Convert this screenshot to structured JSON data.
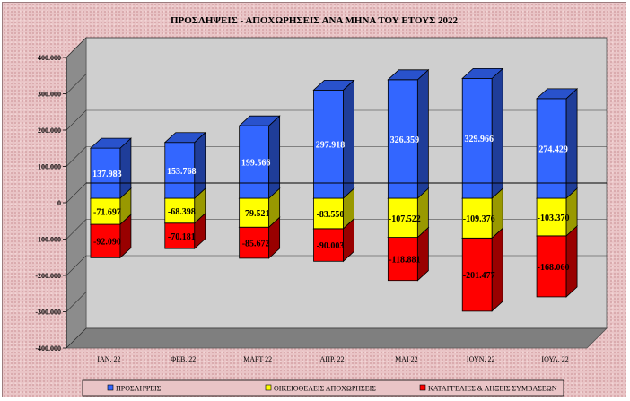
{
  "chart_data": {
    "type": "bar",
    "stacked": true,
    "three_d": true,
    "title": "ΠΡΟΣΛΗΨΕΙΣ - ΑΠΟΧΩΡΗΣΕΙΣ  ΑΝΑ ΜΗΝΑ ΤΟΥ ΕΤΟΥΣ 2022",
    "categories": [
      "ΙΑΝ. 22",
      "ΦΕΒ. 22",
      "ΜΑΡΤ 22",
      "ΑΠΡ. 22",
      "ΜΑΙ 22",
      "ΙΟΥΝ. 22",
      "ΙΟΥΛ. 22"
    ],
    "series": [
      {
        "name": "ΠΡΟΣΛΗΨΕΙΣ",
        "color": "#3366ff",
        "values": [
          137983,
          153768,
          199566,
          297918,
          326359,
          329966,
          274429
        ],
        "labels": [
          "137.983",
          "153.768",
          "199.566",
          "297.918",
          "326.359",
          "329.966",
          "274.429"
        ]
      },
      {
        "name": "ΟΙΚΕΙΟΘΕΛΕΙΣ ΑΠΟΧΩΡΗΣΕΙΣ",
        "color": "#ffff00",
        "values": [
          -71697,
          -68398,
          -79521,
          -83550,
          -107522,
          -109376,
          -103370
        ],
        "labels": [
          "-71.697",
          "-68.398",
          "-79.521",
          "-83.550",
          "-107.522",
          "-109.376",
          "-103.370"
        ]
      },
      {
        "name": "ΚΑΤΑΓΓΕΛΙΕΣ & ΛΗΞΕΙΣ ΣΥΜΒΑΣΕΩΝ",
        "color": "#ff0000",
        "values": [
          -92090,
          -70181,
          -85672,
          -90003,
          -118881,
          -201477,
          -168060
        ],
        "labels": [
          "-92.090",
          "-70.181",
          "-85.672",
          "-90.003",
          "-118.881",
          "-201.477",
          "-168.060"
        ]
      }
    ],
    "ylim": [
      -400000,
      400000
    ],
    "yticks": [
      400000,
      300000,
      200000,
      100000,
      0,
      -100000,
      -200000,
      -300000,
      -400000
    ],
    "ytick_labels": [
      "400.000",
      "300.000",
      "200.000",
      "100.000",
      "0",
      "-100.000",
      "-200.000",
      "-300.000",
      "-400.000"
    ],
    "grid": true,
    "legend_position": "bottom",
    "colors": {
      "plot_back": "#cfcfcf",
      "floor": "#7f7f7f",
      "side_wall": "#8c8c8c",
      "background": "#e9c4c6"
    }
  }
}
